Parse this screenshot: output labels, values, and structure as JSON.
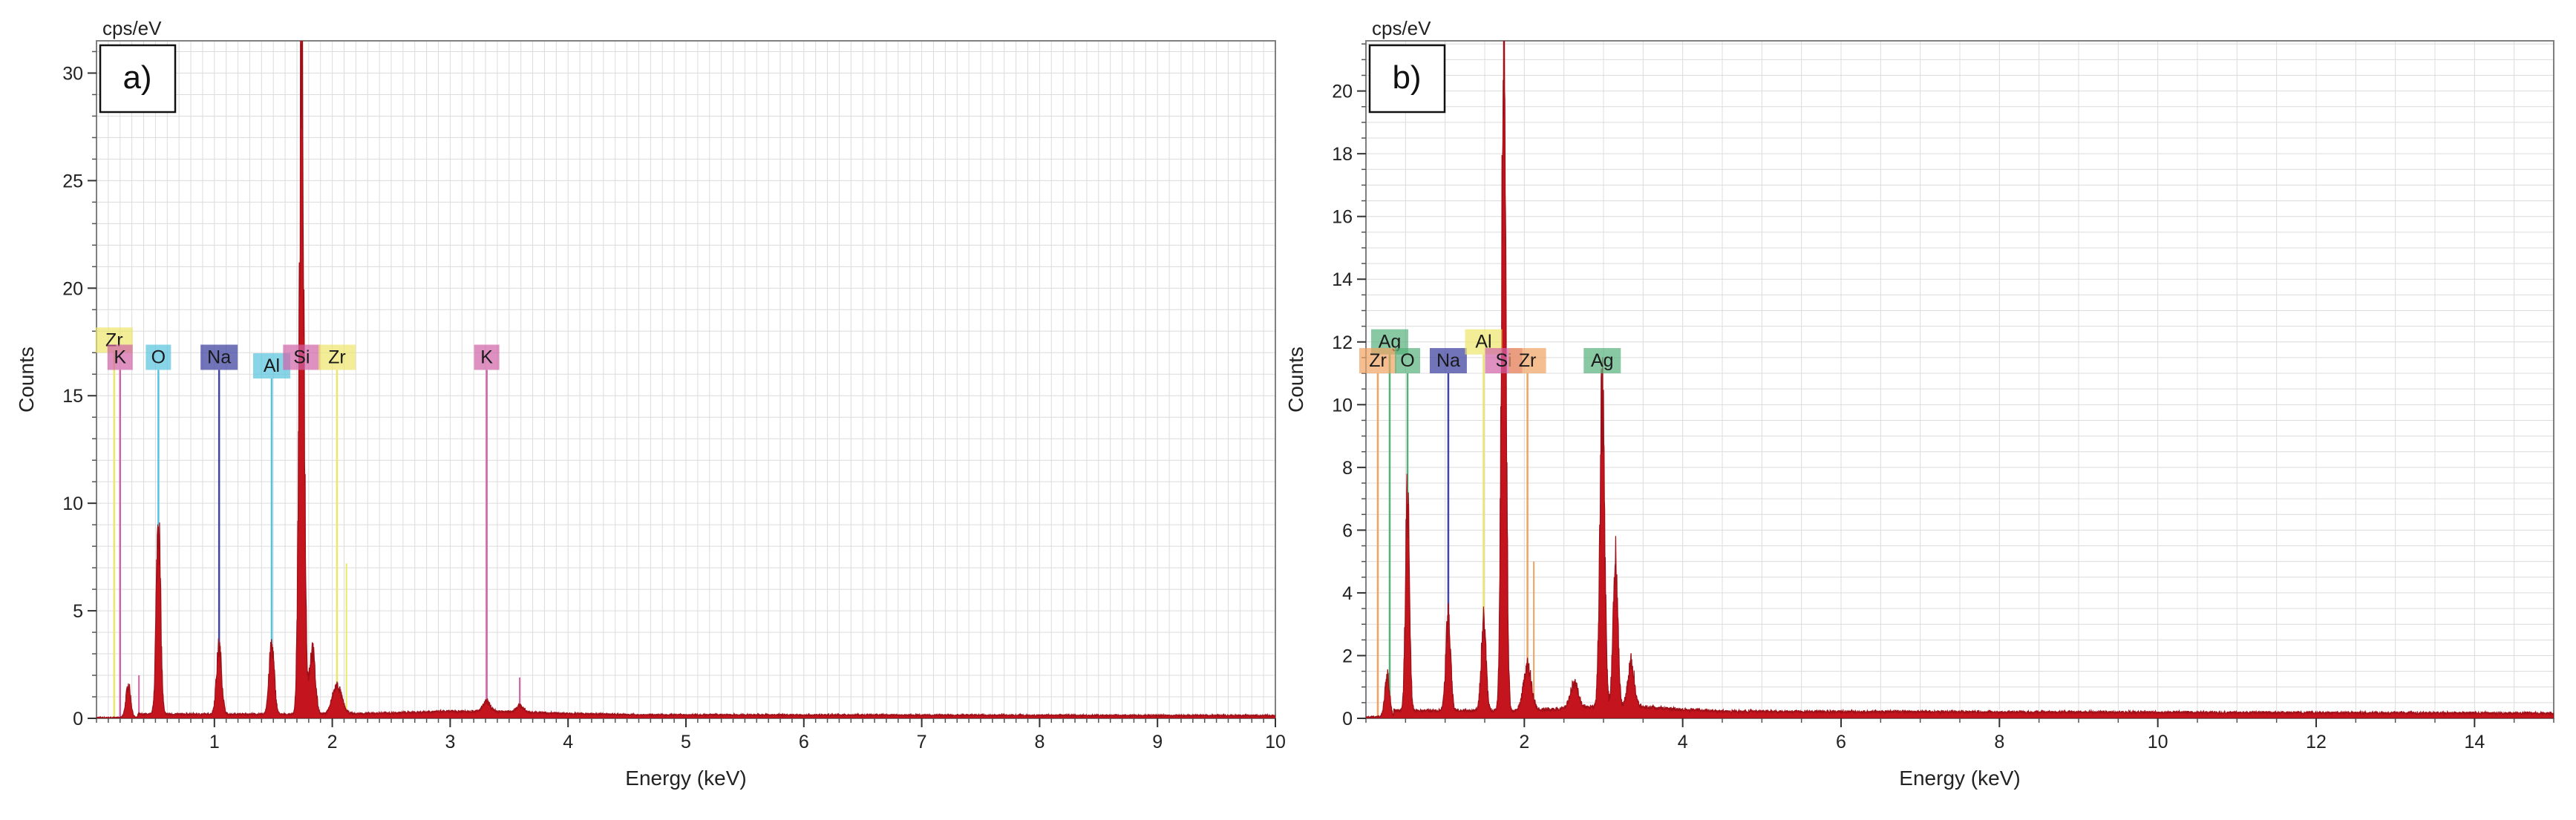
{
  "chart_data": [
    {
      "type": "line",
      "panel_label": "a)",
      "unit_label": "cps/eV",
      "xlabel": "Energy (keV)",
      "ylabel": "Counts",
      "xlim": [
        0.0,
        10.0
      ],
      "ylim": [
        0,
        31.5
      ],
      "x_ticks": [
        1,
        2,
        3,
        4,
        5,
        6,
        7,
        8,
        9,
        10
      ],
      "y_ticks": [
        0,
        5,
        10,
        15,
        20,
        25,
        30
      ],
      "grid": true,
      "spectrum_color": "#c4141e",
      "baseline": 0.2,
      "peaks": [
        {
          "x": 0.27,
          "y": 1.5,
          "w": 0.02
        },
        {
          "x": 0.525,
          "y": 9.2,
          "w": 0.018
        },
        {
          "x": 1.04,
          "y": 3.1,
          "w": 0.022
        },
        {
          "x": 1.486,
          "y": 3.2,
          "w": 0.022
        },
        {
          "x": 1.74,
          "y": 30.4,
          "w": 0.02
        },
        {
          "x": 1.83,
          "y": 3.0,
          "w": 0.025
        },
        {
          "x": 2.04,
          "y": 1.3,
          "w": 0.04
        },
        {
          "x": 3.31,
          "y": 0.45,
          "w": 0.03
        },
        {
          "x": 3.59,
          "y": 0.3,
          "w": 0.03
        }
      ],
      "element_markers": [
        {
          "element": "Zr",
          "x": 0.15,
          "height": 17.0,
          "row": 1,
          "color": "#ece66a"
        },
        {
          "element": "K",
          "x": 0.2,
          "height": 16.2,
          "row": 0,
          "color": "#d062a6"
        },
        {
          "element": "O",
          "x": 0.525,
          "height": 16.2,
          "row": 0,
          "color": "#55c3de"
        },
        {
          "element": "Na",
          "x": 1.04,
          "height": 16.2,
          "row": 0,
          "color": "#4245a2"
        },
        {
          "element": "Al",
          "x": 1.486,
          "height": 15.8,
          "row": 1,
          "color": "#55c3de"
        },
        {
          "element": "Si",
          "x": 1.74,
          "height": 16.2,
          "row": 0,
          "color": "#d062a6"
        },
        {
          "element": "Zr",
          "x": 2.04,
          "height": 16.2,
          "row": 0,
          "color": "#ece66a"
        },
        {
          "element": "K",
          "x": 3.31,
          "height": 16.2,
          "row": 0,
          "color": "#d062a6"
        }
      ],
      "minor_lines": [
        {
          "x": 0.36,
          "height": 2.0,
          "color": "#d062a6"
        },
        {
          "x": 2.12,
          "height": 7.2,
          "color": "#ece66a"
        },
        {
          "x": 3.59,
          "height": 1.9,
          "color": "#d062a6"
        }
      ]
    },
    {
      "type": "line",
      "panel_label": "b)",
      "unit_label": "cps/eV",
      "xlabel": "Energy (keV)",
      "ylabel": "Counts",
      "xlim": [
        0.0,
        15.0
      ],
      "ylim": [
        0,
        21.6
      ],
      "x_ticks": [
        2,
        4,
        6,
        8,
        10,
        12,
        14
      ],
      "y_ticks": [
        0,
        2,
        4,
        6,
        8,
        10,
        12,
        14,
        16,
        18,
        20
      ],
      "grid": true,
      "spectrum_color": "#c4141e",
      "baseline": 0.25,
      "peaks": [
        {
          "x": 0.27,
          "y": 1.3,
          "w": 0.03
        },
        {
          "x": 0.525,
          "y": 6.9,
          "w": 0.025
        },
        {
          "x": 1.04,
          "y": 3.0,
          "w": 0.03
        },
        {
          "x": 1.486,
          "y": 2.8,
          "w": 0.03
        },
        {
          "x": 1.74,
          "y": 21.6,
          "w": 0.028
        },
        {
          "x": 2.04,
          "y": 1.4,
          "w": 0.05
        },
        {
          "x": 2.63,
          "y": 0.8,
          "w": 0.05
        },
        {
          "x": 2.984,
          "y": 10.0,
          "w": 0.03
        },
        {
          "x": 3.151,
          "y": 4.6,
          "w": 0.03
        },
        {
          "x": 3.35,
          "y": 1.4,
          "w": 0.04
        }
      ],
      "element_markers": [
        {
          "element": "Ag",
          "x": 0.3,
          "height": 11.6,
          "row": 1,
          "color": "#55b07a"
        },
        {
          "element": "Zr",
          "x": 0.15,
          "height": 11.0,
          "row": 0,
          "color": "#f0a262"
        },
        {
          "element": "O",
          "x": 0.525,
          "height": 11.0,
          "row": 0,
          "color": "#55b07a"
        },
        {
          "element": "Na",
          "x": 1.04,
          "height": 11.0,
          "row": 0,
          "color": "#4245a2"
        },
        {
          "element": "Al",
          "x": 1.486,
          "height": 11.6,
          "row": 1,
          "color": "#ece66a"
        },
        {
          "element": "Si",
          "x": 1.74,
          "height": 11.0,
          "row": 0,
          "color": "#d062a6"
        },
        {
          "element": "Zr",
          "x": 2.04,
          "height": 11.0,
          "row": 1,
          "color": "#f0a262"
        },
        {
          "element": "Ag",
          "x": 2.984,
          "height": 11.0,
          "row": 0,
          "color": "#55b07a"
        }
      ],
      "minor_lines": [
        {
          "x": 2.12,
          "height": 5.0,
          "color": "#f0a262"
        },
        {
          "x": 3.151,
          "height": 4.8,
          "color": "#55b07a"
        }
      ]
    }
  ]
}
